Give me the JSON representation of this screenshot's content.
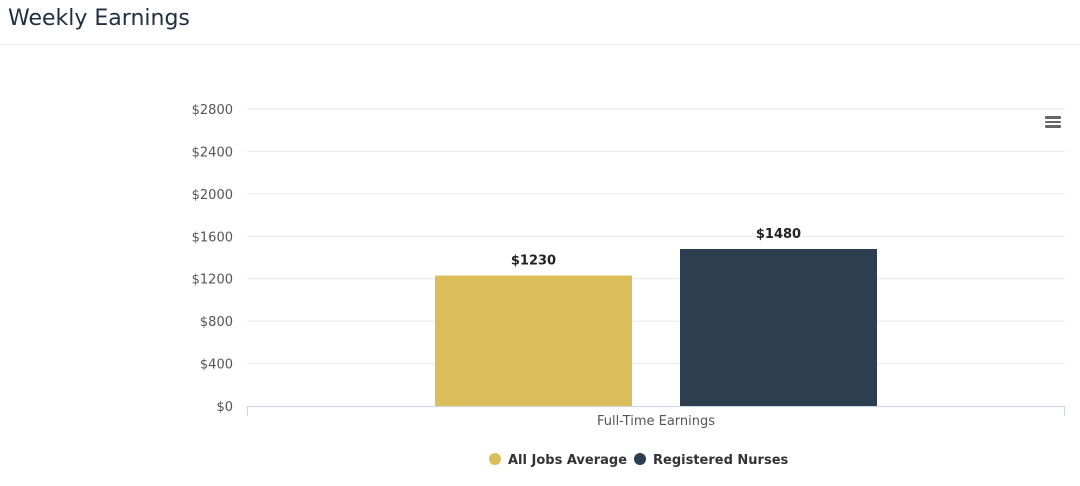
{
  "title": "Weekly Earnings",
  "chart_data": {
    "type": "bar",
    "categories": [
      "Full-Time Earnings"
    ],
    "series": [
      {
        "name": "All Jobs Average",
        "values": [
          1230
        ],
        "color": "#dbbd5a"
      },
      {
        "name": "Registered Nurses",
        "values": [
          1480
        ],
        "color": "#2c3e4f"
      }
    ],
    "data_labels": [
      "$1230",
      "$1480"
    ],
    "yticks": [
      "$0",
      "$400",
      "$800",
      "$1200",
      "$1600",
      "$2000",
      "$2400",
      "$2800"
    ],
    "ylim": [
      0,
      2800
    ],
    "xlabel": "",
    "ylabel": "",
    "legend": "bottom-center",
    "grid": true
  },
  "menu_icon": "hamburger-menu-icon"
}
